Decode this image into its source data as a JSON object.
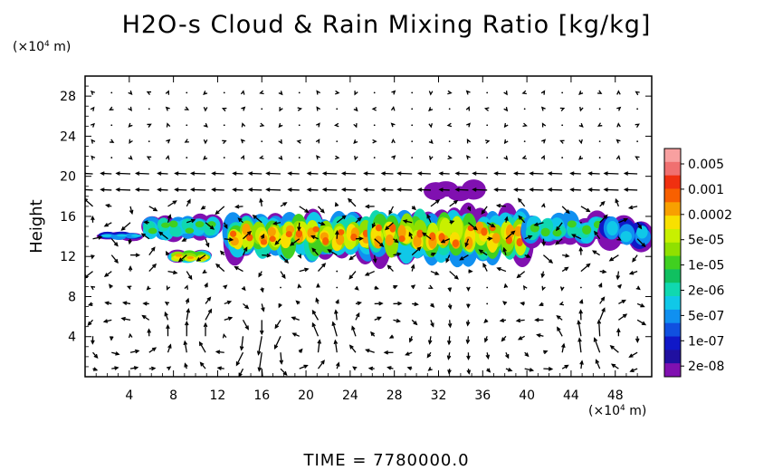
{
  "chart_data": {
    "type": "heatmap",
    "title": "H2O-s Cloud & Rain Mixing Ratio [kg/kg]",
    "ylabel": "Height",
    "xunit": {
      "prefix": "(×10",
      "exp": "4",
      "suffix": " m)"
    },
    "yunit": {
      "prefix": "(×10",
      "exp": "4",
      "suffix": " m)"
    },
    "xlim": [
      0,
      51.3
    ],
    "ylim": [
      0,
      30
    ],
    "xticks": [
      4,
      8,
      12,
      16,
      20,
      24,
      28,
      32,
      36,
      40,
      44,
      48
    ],
    "yticks": [
      4,
      8,
      12,
      16,
      20,
      24,
      28
    ],
    "colorbar": {
      "labels": [
        "0.005",
        "0.001",
        "0.0002",
        "5e-05",
        "1e-05",
        "2e-06",
        "5e-07",
        "1e-07",
        "2e-08"
      ],
      "colors": [
        "#f8a0a0",
        "#f07070",
        "#f03010",
        "#f86000",
        "#f8a000",
        "#f8e000",
        "#c8f000",
        "#90e000",
        "#40d020",
        "#10c060",
        "#10d8b0",
        "#10c8e8",
        "#1090f0",
        "#1050e0",
        "#1018c8",
        "#2010a0",
        "#8010b0"
      ]
    },
    "cloud_regions": [
      {
        "x": [
          1.5,
          5
        ],
        "y": [
          13.6,
          14.5
        ],
        "level": "1e-07"
      },
      {
        "x": [
          5.5,
          12
        ],
        "y": [
          13.5,
          16.2
        ],
        "level": "1e-06"
      },
      {
        "x": [
          8,
          11
        ],
        "y": [
          11.3,
          12.6
        ],
        "level": "1e-05"
      },
      {
        "x": [
          13,
          26
        ],
        "y": [
          11.6,
          16.4
        ],
        "level": "5e-05"
      },
      {
        "x": [
          26,
          40
        ],
        "y": [
          11.3,
          16.8
        ],
        "level": "5e-05"
      },
      {
        "x": [
          40,
          47
        ],
        "y": [
          13.1,
          16.4
        ],
        "level": "1e-06"
      },
      {
        "x": [
          47,
          51
        ],
        "y": [
          12.6,
          16.4
        ],
        "level": "1e-07"
      },
      {
        "x": [
          31,
          36
        ],
        "y": [
          17.5,
          19.5
        ],
        "level": "2e-08"
      }
    ],
    "wind_field": "vector arrows on regular grid",
    "time_label": "TIME  =  7780000.0"
  }
}
